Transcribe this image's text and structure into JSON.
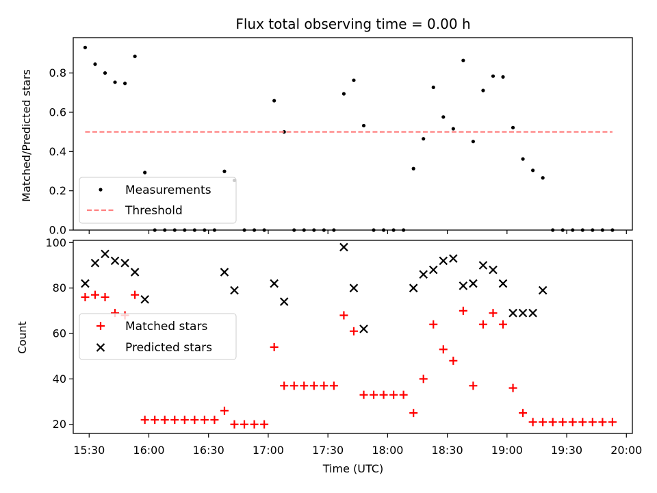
{
  "chart_data": [
    {
      "type": "scatter",
      "title": "Flux total observing time = 0.00 h",
      "xlabel": "",
      "ylabel": "Matched/Predicted stars",
      "xlim": [
        "15:22",
        "20:03"
      ],
      "ylim": [
        0,
        0.98
      ],
      "yticks": [
        0,
        0.2,
        0.4,
        0.6,
        0.8
      ],
      "ytick_labels": [
        "0.0",
        "0.2",
        "0.4",
        "0.6",
        "0.8"
      ],
      "xticks": [
        "15:30",
        "16:00",
        "16:30",
        "17:00",
        "17:30",
        "18:00",
        "18:30",
        "19:00",
        "19:30",
        "20:00"
      ],
      "legend_position": "lower-left",
      "series": [
        {
          "name": "Measurements",
          "style": "point",
          "color": "#000000",
          "x": [
            "15:28",
            "15:33",
            "15:38",
            "15:43",
            "15:48",
            "15:53",
            "15:58",
            "16:03",
            "16:08",
            "16:13",
            "16:18",
            "16:23",
            "16:28",
            "16:33",
            "16:38",
            "16:43",
            "16:48",
            "16:53",
            "16:58",
            "17:03",
            "17:08",
            "17:13",
            "17:18",
            "17:23",
            "17:28",
            "17:33",
            "17:38",
            "17:43",
            "17:48",
            "17:53",
            "17:58",
            "18:03",
            "18:08",
            "18:13",
            "18:18",
            "18:23",
            "18:28",
            "18:33",
            "18:38",
            "18:43",
            "18:48",
            "18:53",
            "18:58",
            "19:03",
            "19:08",
            "19:13",
            "19:18",
            "19:23",
            "19:28",
            "19:33",
            "19:38",
            "19:43",
            "19:48",
            "19:53"
          ],
          "y": [
            0.93,
            0.845,
            0.8,
            0.753,
            0.747,
            0.885,
            0.293,
            0,
            0,
            0,
            0,
            0,
            0,
            0,
            0.299,
            0.253,
            0,
            0,
            0,
            0.659,
            0.5,
            0,
            0,
            0,
            0,
            0,
            0.694,
            0.763,
            0.532,
            0,
            0,
            0,
            0,
            0.313,
            0.465,
            0.727,
            0.576,
            0.516,
            0.864,
            0.451,
            0.711,
            0.784,
            0.78,
            0.522,
            0.362,
            0.304,
            0.266,
            0,
            0,
            0,
            0,
            0,
            0,
            0
          ]
        },
        {
          "name": "Threshold",
          "style": "dashed",
          "color": "#ff8080",
          "x": [
            "15:28",
            "19:53"
          ],
          "y": [
            0.5,
            0.5
          ]
        }
      ]
    },
    {
      "type": "scatter",
      "title": "",
      "xlabel": "Time (UTC)",
      "ylabel": "Count",
      "xlim": [
        "15:22",
        "20:03"
      ],
      "ylim": [
        16,
        101
      ],
      "yticks": [
        20,
        40,
        60,
        80,
        100
      ],
      "ytick_labels": [
        "20",
        "40",
        "60",
        "80",
        "100"
      ],
      "xticks": [
        "15:30",
        "16:00",
        "16:30",
        "17:00",
        "17:30",
        "18:00",
        "18:30",
        "19:00",
        "19:30",
        "20:00"
      ],
      "legend_position": "center-left",
      "series": [
        {
          "name": "Matched stars",
          "marker": "plus",
          "color": "#ff0000",
          "x": [
            "15:28",
            "15:33",
            "15:38",
            "15:43",
            "15:48",
            "15:53",
            "15:58",
            "16:03",
            "16:08",
            "16:13",
            "16:18",
            "16:23",
            "16:28",
            "16:33",
            "16:38",
            "16:43",
            "16:48",
            "16:53",
            "16:58",
            "17:03",
            "17:08",
            "17:13",
            "17:18",
            "17:23",
            "17:28",
            "17:33",
            "17:38",
            "17:43",
            "17:48",
            "17:53",
            "17:58",
            "18:03",
            "18:08",
            "18:13",
            "18:18",
            "18:23",
            "18:28",
            "18:33",
            "18:38",
            "18:43",
            "18:48",
            "18:53",
            "18:58",
            "19:03",
            "19:08",
            "19:13",
            "19:18",
            "19:23",
            "19:28",
            "19:33",
            "19:38",
            "19:43",
            "19:48",
            "19:53"
          ],
          "y": [
            76,
            77,
            76,
            69,
            68,
            77,
            22,
            22,
            22,
            22,
            22,
            22,
            22,
            22,
            26,
            20,
            20,
            20,
            20,
            54,
            37,
            37,
            37,
            37,
            37,
            37,
            68,
            61,
            33,
            33,
            33,
            33,
            33,
            25,
            40,
            64,
            53,
            48,
            70,
            37,
            64,
            69,
            64,
            36,
            25,
            21,
            21,
            21,
            21,
            21,
            21,
            21,
            21,
            21
          ]
        },
        {
          "name": "Predicted stars",
          "marker": "x",
          "color": "#000000",
          "x": [
            "15:28",
            "15:33",
            "15:38",
            "15:43",
            "15:48",
            "15:53",
            "15:58",
            "16:38",
            "16:43",
            "17:03",
            "17:08",
            "17:38",
            "17:43",
            "17:48",
            "18:13",
            "18:18",
            "18:23",
            "18:28",
            "18:33",
            "18:38",
            "18:43",
            "18:48",
            "18:53",
            "18:58",
            "19:03",
            "19:08",
            "19:13",
            "19:18"
          ],
          "y": [
            82,
            91,
            95,
            92,
            91,
            87,
            75,
            87,
            79,
            82,
            74,
            98,
            80,
            62,
            80,
            86,
            88,
            92,
            93,
            81,
            82,
            90,
            88,
            82,
            69,
            69,
            69,
            79
          ]
        }
      ]
    }
  ]
}
